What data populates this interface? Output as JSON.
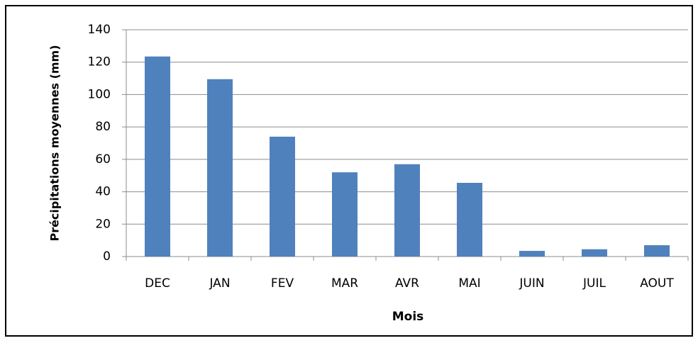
{
  "chart_data": {
    "type": "bar",
    "x_label": "Mois",
    "y_label": "Précipitations  moyennes  (mm)",
    "categories": [
      "DEC",
      "JAN",
      "FEV",
      "MAR",
      "AVR",
      "MAI",
      "JUIN",
      "JUIL",
      "AOUT"
    ],
    "values": [
      123.5,
      109.5,
      74,
      52,
      57,
      45.5,
      3.5,
      4.5,
      7
    ],
    "color": "#4f81bd",
    "ylim": [
      0,
      140
    ],
    "yticks": [
      0,
      20,
      40,
      60,
      80,
      100,
      120,
      140
    ],
    "grid": true
  }
}
